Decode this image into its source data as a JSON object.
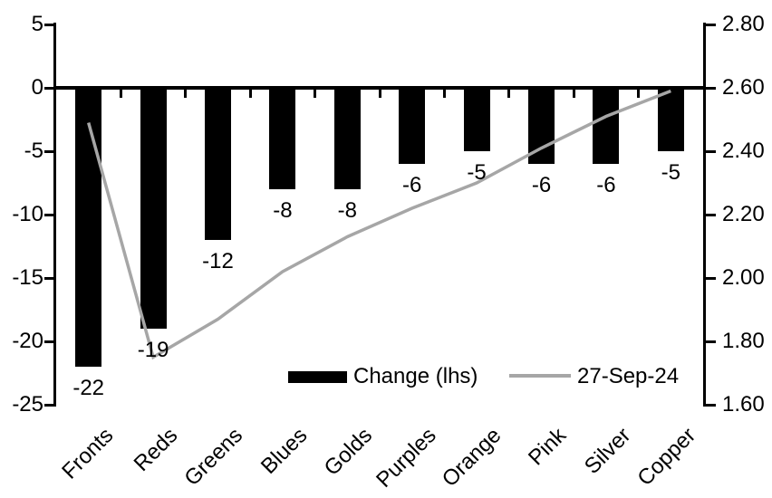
{
  "colors": {
    "bar": "#000000",
    "line": "#a6a6a6",
    "axis": "#000000",
    "text": "#000000",
    "background": "#ffffff"
  },
  "chart_data": {
    "type": "combo-bar-line",
    "title": "",
    "categories": [
      "Fronts",
      "Reds",
      "Greens",
      "Blues",
      "Golds",
      "Purples",
      "Orange",
      "Pink",
      "Silver",
      "Copper"
    ],
    "series": [
      {
        "name": "Change (lhs)",
        "type": "bar",
        "axis": "left",
        "color": "#000000",
        "values": [
          -22,
          -19,
          -12,
          -8,
          -8,
          -6,
          -5,
          -6,
          -6,
          -5
        ],
        "data_labels": [
          "-22",
          "-19",
          "-12",
          "-8",
          "-8",
          "-6",
          "-5",
          "-6",
          "-6",
          "-5"
        ]
      },
      {
        "name": "27-Sep-24",
        "type": "line",
        "axis": "right",
        "color": "#a6a6a6",
        "values": [
          2.49,
          1.75,
          1.87,
          2.02,
          2.13,
          2.22,
          2.3,
          2.41,
          2.51,
          2.59
        ]
      }
    ],
    "left_axis": {
      "min": -25,
      "max": 5,
      "tick_labels": [
        "5",
        "0",
        "-5",
        "-10",
        "-15",
        "-20",
        "-25"
      ]
    },
    "right_axis": {
      "min": 1.6,
      "max": 2.8,
      "tick_labels": [
        "2.80",
        "2.60",
        "2.40",
        "2.20",
        "2.00",
        "1.80",
        "1.60"
      ]
    },
    "legend": {
      "position": "inside-bottom-center",
      "items": [
        {
          "label": "Change (lhs)",
          "swatch": "bar",
          "color": "#000000"
        },
        {
          "label": "27-Sep-24",
          "swatch": "line",
          "color": "#a6a6a6"
        }
      ]
    },
    "gridlines": false
  }
}
